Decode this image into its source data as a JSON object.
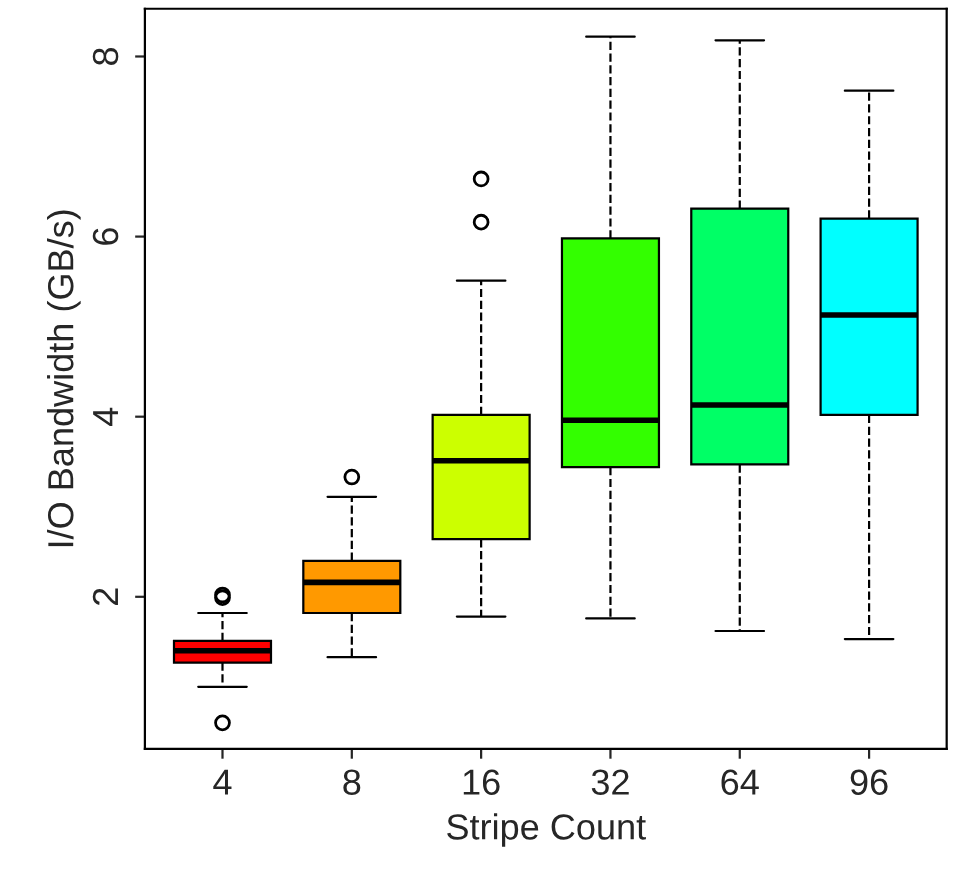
{
  "chart_data": {
    "type": "box",
    "xlabel": "Stripe Count",
    "ylabel": "I/O Bandwidth (GB/s)",
    "categories": [
      "4",
      "8",
      "16",
      "32",
      "64",
      "96"
    ],
    "colors": [
      "#ff0000",
      "#ff9900",
      "#ccff00",
      "#33ff00",
      "#00ff66",
      "#00ffff"
    ],
    "boxes": [
      {
        "low": 1.0,
        "q1": 1.27,
        "median": 1.4,
        "q3": 1.51,
        "high": 1.82,
        "outliers": [
          2.02,
          1.99,
          0.6
        ]
      },
      {
        "low": 1.33,
        "q1": 1.82,
        "median": 2.16,
        "q3": 2.4,
        "high": 3.11,
        "outliers": [
          3.33
        ]
      },
      {
        "low": 1.78,
        "q1": 2.64,
        "median": 3.51,
        "q3": 4.02,
        "high": 5.51,
        "outliers": [
          6.16,
          6.64
        ]
      },
      {
        "low": 1.76,
        "q1": 3.44,
        "median": 3.96,
        "q3": 5.98,
        "high": 8.22
      },
      {
        "low": 1.62,
        "q1": 3.47,
        "median": 4.13,
        "q3": 6.31,
        "high": 8.18
      },
      {
        "low": 1.53,
        "q1": 4.02,
        "median": 5.13,
        "q3": 6.2,
        "high": 7.62
      }
    ],
    "ylim": [
      0.31,
      8.53
    ],
    "yticks": [
      2,
      4,
      6,
      8
    ],
    "grid": false,
    "line_style": "dashed"
  }
}
